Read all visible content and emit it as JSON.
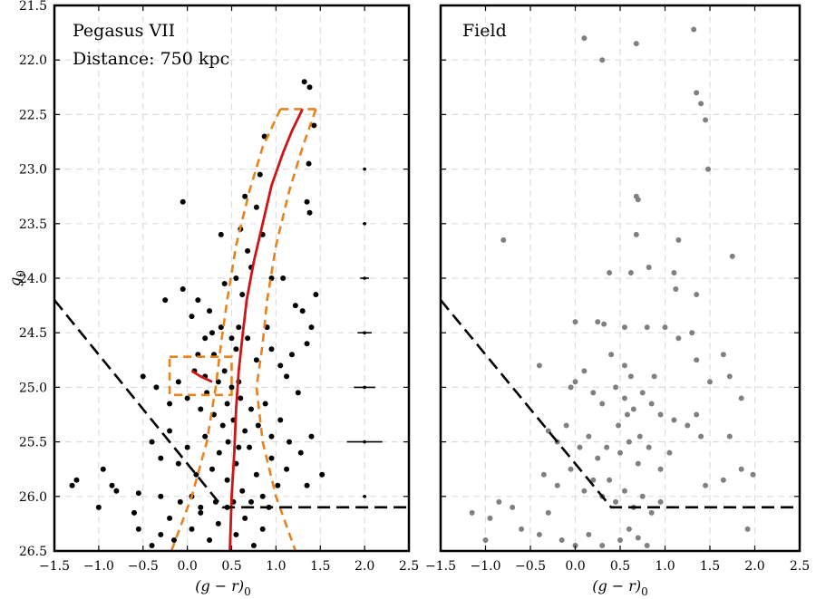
{
  "chart_data": [
    {
      "type": "scatter",
      "panel_label": "Pegasus VII",
      "annotation": "Distance: 750 kpc",
      "xlabel": "(g − r)",
      "xlabel_sub": "0",
      "ylabel": "g",
      "ylabel_sub": "0",
      "xlim": [
        -1.5,
        2.5
      ],
      "ylim": [
        26.5,
        21.5
      ],
      "y_inverted": true,
      "grid": true,
      "xticks": [
        "−1.5",
        "−1.0",
        "−0.5",
        "0.0",
        "0.5",
        "1.0",
        "1.5",
        "2.0",
        "2.5"
      ],
      "yticks": [
        "21.5",
        "22.0",
        "22.5",
        "23.0",
        "23.5",
        "24.0",
        "24.5",
        "25.0",
        "25.5",
        "26.0",
        "26.5"
      ],
      "colors": {
        "stars": "#000000",
        "isochrone": "#cc1515",
        "window": "#e8821e",
        "cut": "#000000",
        "error": "#000000"
      },
      "stars": [
        [
          1.32,
          22.2
        ],
        [
          1.38,
          22.25
        ],
        [
          1.43,
          22.6
        ],
        [
          1.37,
          22.95
        ],
        [
          1.35,
          23.3
        ],
        [
          1.38,
          23.4
        ],
        [
          0.87,
          22.7
        ],
        [
          0.82,
          23.05
        ],
        [
          0.78,
          23.35
        ],
        [
          0.85,
          23.6
        ],
        [
          0.72,
          23.9
        ],
        [
          0.95,
          24.0
        ],
        [
          -0.05,
          23.3
        ],
        [
          0.65,
          23.25
        ],
        [
          0.6,
          23.55
        ],
        [
          0.68,
          23.75
        ],
        [
          0.55,
          24.0
        ],
        [
          0.62,
          24.15
        ],
        [
          1.08,
          24.0
        ],
        [
          1.22,
          24.25
        ],
        [
          1.45,
          24.15
        ],
        [
          1.3,
          24.3
        ],
        [
          1.4,
          24.45
        ],
        [
          1.35,
          24.6
        ],
        [
          -0.25,
          24.2
        ],
        [
          -0.05,
          24.1
        ],
        [
          0.05,
          24.35
        ],
        [
          0.12,
          24.2
        ],
        [
          0.25,
          24.3
        ],
        [
          0.38,
          24.45
        ],
        [
          0.2,
          24.55
        ],
        [
          0.3,
          24.7
        ],
        [
          0.42,
          24.85
        ],
        [
          0.55,
          24.65
        ],
        [
          0.68,
          24.55
        ],
        [
          0.78,
          24.75
        ],
        [
          0.9,
          24.45
        ],
        [
          0.95,
          24.65
        ],
        [
          1.05,
          24.8
        ],
        [
          1.12,
          24.9
        ],
        [
          1.18,
          24.7
        ],
        [
          1.25,
          25.05
        ],
        [
          -0.5,
          24.9
        ],
        [
          -0.35,
          25.0
        ],
        [
          -0.2,
          25.15
        ],
        [
          -0.1,
          24.95
        ],
        [
          0.0,
          25.1
        ],
        [
          0.08,
          24.85
        ],
        [
          0.15,
          25.2
        ],
        [
          0.22,
          25.05
        ],
        [
          0.3,
          25.25
        ],
        [
          0.35,
          24.95
        ],
        [
          0.45,
          25.15
        ],
        [
          0.52,
          25.3
        ],
        [
          0.6,
          25.1
        ],
        [
          0.65,
          25.4
        ],
        [
          0.72,
          25.2
        ],
        [
          0.8,
          25.35
        ],
        [
          0.88,
          25.15
        ],
        [
          0.95,
          25.45
        ],
        [
          1.05,
          25.3
        ],
        [
          1.15,
          25.5
        ],
        [
          1.28,
          25.6
        ],
        [
          1.4,
          25.45
        ],
        [
          1.52,
          25.8
        ],
        [
          1.35,
          25.9
        ],
        [
          -0.4,
          25.5
        ],
        [
          -0.3,
          25.65
        ],
        [
          -0.2,
          25.4
        ],
        [
          -0.1,
          25.7
        ],
        [
          0.0,
          25.55
        ],
        [
          0.1,
          25.8
        ],
        [
          0.2,
          25.45
        ],
        [
          0.28,
          25.75
        ],
        [
          0.36,
          25.6
        ],
        [
          0.45,
          25.85
        ],
        [
          0.55,
          25.7
        ],
        [
          0.62,
          25.95
        ],
        [
          0.7,
          25.55
        ],
        [
          0.78,
          25.8
        ],
        [
          0.85,
          26.0
        ],
        [
          0.95,
          25.65
        ],
        [
          1.02,
          25.9
        ],
        [
          1.12,
          25.75
        ],
        [
          -0.3,
          26.0
        ],
        [
          -0.2,
          26.2
        ],
        [
          -0.08,
          26.05
        ],
        [
          0.05,
          26.3
        ],
        [
          0.15,
          26.15
        ],
        [
          0.25,
          26.4
        ],
        [
          0.35,
          26.25
        ],
        [
          0.45,
          26.1
        ],
        [
          0.55,
          26.35
        ],
        [
          0.65,
          26.2
        ],
        [
          0.75,
          26.45
        ],
        [
          0.85,
          26.3
        ],
        [
          -1.3,
          25.9
        ],
        [
          -1.25,
          25.85
        ],
        [
          -0.95,
          25.75
        ],
        [
          -0.85,
          25.9
        ],
        [
          -0.8,
          25.95
        ],
        [
          -0.55,
          25.97
        ],
        [
          -1.0,
          26.1
        ],
        [
          -0.6,
          26.15
        ],
        [
          -0.55,
          26.3
        ],
        [
          -0.4,
          26.45
        ],
        [
          -0.15,
          26.4
        ],
        [
          -0.3,
          26.35
        ],
        [
          0.05,
          26.0
        ],
        [
          0.15,
          26.1
        ],
        [
          0.32,
          26.05
        ],
        [
          0.52,
          26.05
        ],
        [
          0.72,
          26.05
        ],
        [
          0.92,
          26.1
        ],
        [
          0.38,
          23.6
        ],
        [
          0.42,
          24.05
        ],
        [
          0.5,
          24.55
        ],
        [
          0.58,
          24.45
        ],
        [
          0.46,
          25.5
        ],
        [
          0.58,
          25.55
        ],
        [
          0.12,
          24.7
        ],
        [
          0.2,
          24.9
        ],
        [
          0.28,
          24.5
        ],
        [
          0.4,
          25.35
        ],
        [
          0.5,
          25.0
        ],
        [
          0.58,
          24.95
        ]
      ],
      "error_bars": [
        {
          "x": 2.0,
          "y": 23.0,
          "xerr": 0.01,
          "yerr": 0.01
        },
        {
          "x": 2.0,
          "y": 23.5,
          "xerr": 0.02,
          "yerr": 0.01
        },
        {
          "x": 2.0,
          "y": 24.0,
          "xerr": 0.05,
          "yerr": 0.03
        },
        {
          "x": 2.0,
          "y": 24.5,
          "xerr": 0.08,
          "yerr": 0.06
        },
        {
          "x": 2.0,
          "y": 25.0,
          "xerr": 0.12,
          "yerr": 0.09
        },
        {
          "x": 2.0,
          "y": 25.5,
          "xerr": 0.2,
          "yerr": 0.13
        },
        {
          "x": 2.0,
          "y": 26.0,
          "xerr": 0.02,
          "yerr": 0.02
        }
      ],
      "isochrone": [
        [
          1.3,
          22.45
        ],
        [
          1.18,
          22.65
        ],
        [
          1.08,
          22.85
        ],
        [
          0.95,
          23.15
        ],
        [
          0.85,
          23.5
        ],
        [
          0.75,
          23.85
        ],
        [
          0.67,
          24.2
        ],
        [
          0.62,
          24.55
        ],
        [
          0.58,
          24.85
        ],
        [
          0.55,
          25.2
        ],
        [
          0.53,
          25.6
        ],
        [
          0.5,
          26.0
        ],
        [
          0.48,
          26.5
        ]
      ],
      "hb": [
        [
          0.05,
          24.85
        ],
        [
          0.15,
          24.9
        ],
        [
          0.28,
          24.95
        ]
      ],
      "window_left": [
        [
          1.05,
          22.45
        ],
        [
          0.85,
          22.8
        ],
        [
          0.7,
          23.2
        ],
        [
          0.55,
          23.7
        ],
        [
          0.45,
          24.2
        ],
        [
          0.38,
          24.6
        ],
        [
          0.32,
          25.0
        ],
        [
          0.22,
          25.5
        ],
        [
          0.05,
          26.0
        ],
        [
          -0.18,
          26.5
        ]
      ],
      "window_right": [
        [
          1.45,
          22.45
        ],
        [
          1.3,
          22.8
        ],
        [
          1.15,
          23.2
        ],
        [
          1.0,
          23.7
        ],
        [
          0.9,
          24.2
        ],
        [
          0.85,
          24.6
        ],
        [
          0.78,
          25.0
        ],
        [
          0.85,
          25.5
        ],
        [
          1.0,
          26.0
        ],
        [
          1.22,
          26.5
        ]
      ],
      "window_top": [
        [
          1.05,
          22.45
        ],
        [
          1.45,
          22.45
        ]
      ],
      "hb_box": {
        "x0": -0.2,
        "x1": 0.5,
        "y0": 24.72,
        "y1": 25.07
      },
      "cut_line": [
        [
          -1.5,
          24.2
        ],
        [
          0.4,
          26.1
        ],
        [
          2.5,
          26.1
        ]
      ]
    },
    {
      "type": "scatter",
      "panel_label": "Field",
      "xlabel": "(g − r)",
      "xlabel_sub": "0",
      "xlim": [
        -1.5,
        2.5
      ],
      "ylim": [
        26.5,
        21.5
      ],
      "y_inverted": true,
      "grid": true,
      "xticks": [
        "−1.5",
        "−1.0",
        "−0.5",
        "0.0",
        "0.5",
        "1.0",
        "1.5",
        "2.0",
        "2.5"
      ],
      "colors": {
        "stars": "#808080",
        "cut": "#000000"
      },
      "stars": [
        [
          0.1,
          21.8
        ],
        [
          0.68,
          21.85
        ],
        [
          0.3,
          22.0
        ],
        [
          1.32,
          21.72
        ],
        [
          1.35,
          22.3
        ],
        [
          1.4,
          22.4
        ],
        [
          1.45,
          22.55
        ],
        [
          1.48,
          23.0
        ],
        [
          0.68,
          23.25
        ],
        [
          0.7,
          23.28
        ],
        [
          -0.8,
          23.65
        ],
        [
          0.68,
          23.6
        ],
        [
          1.15,
          23.65
        ],
        [
          1.75,
          23.8
        ],
        [
          0.38,
          23.95
        ],
        [
          0.82,
          23.9
        ],
        [
          0.62,
          23.95
        ],
        [
          1.1,
          23.95
        ],
        [
          1.12,
          24.1
        ],
        [
          1.35,
          24.15
        ],
        [
          0.0,
          24.4
        ],
        [
          0.25,
          24.4
        ],
        [
          0.32,
          24.42
        ],
        [
          0.55,
          24.45
        ],
        [
          0.8,
          24.45
        ],
        [
          1.0,
          24.45
        ],
        [
          1.15,
          24.55
        ],
        [
          1.3,
          24.5
        ],
        [
          1.35,
          24.75
        ],
        [
          1.65,
          24.7
        ],
        [
          1.72,
          24.9
        ],
        [
          1.5,
          24.95
        ],
        [
          -0.4,
          24.8
        ],
        [
          -0.05,
          25.0
        ],
        [
          0.0,
          24.95
        ],
        [
          0.1,
          24.85
        ],
        [
          0.2,
          25.05
        ],
        [
          0.3,
          25.15
        ],
        [
          0.45,
          25.0
        ],
        [
          0.55,
          25.1
        ],
        [
          0.65,
          25.2
        ],
        [
          0.75,
          25.05
        ],
        [
          0.85,
          25.15
        ],
        [
          0.95,
          25.25
        ],
        [
          1.1,
          25.3
        ],
        [
          1.25,
          25.35
        ],
        [
          1.35,
          25.25
        ],
        [
          1.85,
          25.1
        ],
        [
          -0.3,
          25.4
        ],
        [
          -0.2,
          25.5
        ],
        [
          -0.1,
          25.35
        ],
        [
          0.05,
          25.55
        ],
        [
          0.15,
          25.45
        ],
        [
          0.25,
          25.65
        ],
        [
          0.35,
          25.55
        ],
        [
          0.5,
          25.6
        ],
        [
          0.6,
          25.5
        ],
        [
          0.7,
          25.7
        ],
        [
          0.82,
          25.55
        ],
        [
          0.95,
          25.75
        ],
        [
          1.05,
          25.6
        ],
        [
          1.4,
          25.45
        ],
        [
          1.72,
          25.45
        ],
        [
          1.45,
          25.9
        ],
        [
          -0.35,
          25.8
        ],
        [
          -0.2,
          25.9
        ],
        [
          -0.05,
          25.75
        ],
        [
          0.1,
          25.95
        ],
        [
          0.2,
          25.85
        ],
        [
          0.3,
          26.0
        ],
        [
          0.45,
          26.05
        ],
        [
          0.55,
          25.95
        ],
        [
          0.65,
          26.1
        ],
        [
          0.75,
          26.0
        ],
        [
          0.85,
          26.15
        ],
        [
          0.95,
          26.05
        ],
        [
          1.85,
          25.75
        ],
        [
          1.98,
          25.8
        ],
        [
          1.65,
          25.85
        ],
        [
          1.92,
          26.3
        ],
        [
          -1.15,
          26.15
        ],
        [
          -0.95,
          26.2
        ],
        [
          -0.85,
          26.05
        ],
        [
          -0.7,
          26.1
        ],
        [
          -0.6,
          26.3
        ],
        [
          -0.4,
          26.35
        ],
        [
          -0.15,
          26.4
        ],
        [
          0.0,
          26.45
        ],
        [
          0.15,
          26.35
        ],
        [
          0.3,
          26.45
        ],
        [
          0.5,
          26.4
        ],
        [
          0.6,
          26.3
        ],
        [
          0.7,
          26.38
        ],
        [
          0.8,
          26.45
        ],
        [
          -1.0,
          26.4
        ],
        [
          -0.3,
          26.15
        ],
        [
          0.4,
          24.7
        ],
        [
          0.55,
          24.8
        ],
        [
          0.62,
          24.9
        ],
        [
          0.48,
          25.35
        ],
        [
          0.72,
          25.45
        ],
        [
          0.38,
          25.85
        ],
        [
          0.58,
          25.25
        ],
        [
          0.88,
          24.9
        ]
      ],
      "cut_line": [
        [
          -1.5,
          24.2
        ],
        [
          0.4,
          26.1
        ],
        [
          2.5,
          26.1
        ]
      ]
    }
  ]
}
